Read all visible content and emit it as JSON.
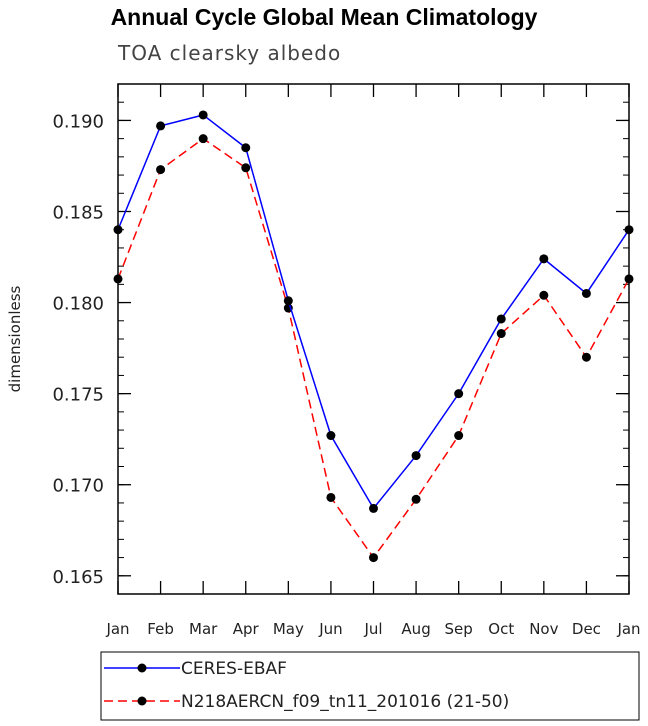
{
  "chart_data": {
    "type": "line",
    "title": "Annual Cycle Global Mean Climatology",
    "subtitle": "TOA clearsky albedo",
    "xlabel": "",
    "ylabel": "dimensionless",
    "categories": [
      "Jan",
      "Feb",
      "Mar",
      "Apr",
      "May",
      "Jun",
      "Jul",
      "Aug",
      "Sep",
      "Oct",
      "Nov",
      "Dec",
      "Jan"
    ],
    "ylim": [
      0.164,
      0.192
    ],
    "yticks": [
      0.165,
      0.17,
      0.175,
      0.18,
      0.185,
      0.19
    ],
    "ytick_labels": [
      "0.165",
      "0.170",
      "0.175",
      "0.180",
      "0.185",
      "0.190"
    ],
    "legend_position": "bottom",
    "series": [
      {
        "name": "CERES-EBAF",
        "color": "#0000ff",
        "dashed": false,
        "values": [
          0.184,
          0.1897,
          0.1903,
          0.1885,
          0.1801,
          0.1727,
          0.1687,
          0.1716,
          0.175,
          0.1791,
          0.1824,
          0.1805,
          0.184
        ]
      },
      {
        "name": "N218AERCN_f09_tn11_201016 (21-50)",
        "color": "#ff0000",
        "dashed": true,
        "values": [
          0.1813,
          0.1873,
          0.189,
          0.1874,
          0.1797,
          0.1693,
          0.166,
          0.1692,
          0.1727,
          0.1783,
          0.1804,
          0.177,
          0.1813
        ]
      }
    ]
  }
}
